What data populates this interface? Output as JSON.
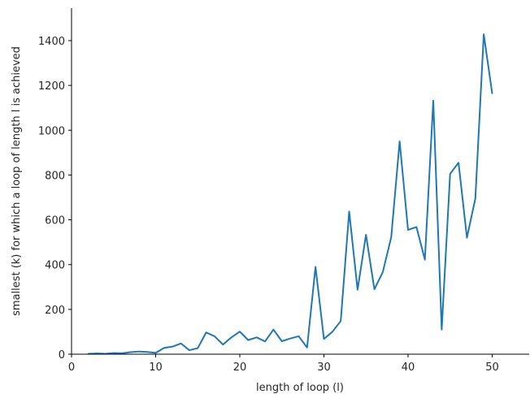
{
  "chart_data": {
    "type": "line",
    "xlabel": "length of loop (l)",
    "ylabel": "smallest (k) for which a loop of length l is achieved",
    "xlim": [
      0,
      54.4
    ],
    "ylim": [
      0,
      1545
    ],
    "xticks": [
      0,
      10,
      20,
      30,
      40,
      50
    ],
    "yticks": [
      0,
      200,
      400,
      600,
      800,
      1000,
      1200,
      1400
    ],
    "grid": false,
    "line_color": "#1f77b4",
    "series": [
      {
        "x": [
          2,
          3,
          4,
          5,
          6,
          7,
          8,
          9,
          10,
          11,
          12,
          13,
          14,
          15,
          16,
          17,
          18,
          19,
          20,
          21,
          22,
          23,
          24,
          25,
          26,
          27,
          28,
          29,
          30,
          31,
          32,
          33,
          34,
          35,
          36,
          37,
          38,
          39,
          40,
          41,
          42,
          43,
          44,
          45,
          46,
          47,
          48,
          49,
          50
        ],
        "values": [
          2,
          3,
          2,
          5,
          4,
          9,
          12,
          10,
          6,
          28,
          34,
          48,
          18,
          27,
          97,
          80,
          43,
          75,
          101,
          63,
          75,
          57,
          110,
          58,
          70,
          80,
          30,
          390,
          68,
          100,
          148,
          637,
          288,
          533,
          290,
          367,
          522,
          950,
          555,
          568,
          422,
          1132,
          110,
          805,
          855,
          520,
          695,
          1428,
          1165
        ]
      }
    ]
  }
}
